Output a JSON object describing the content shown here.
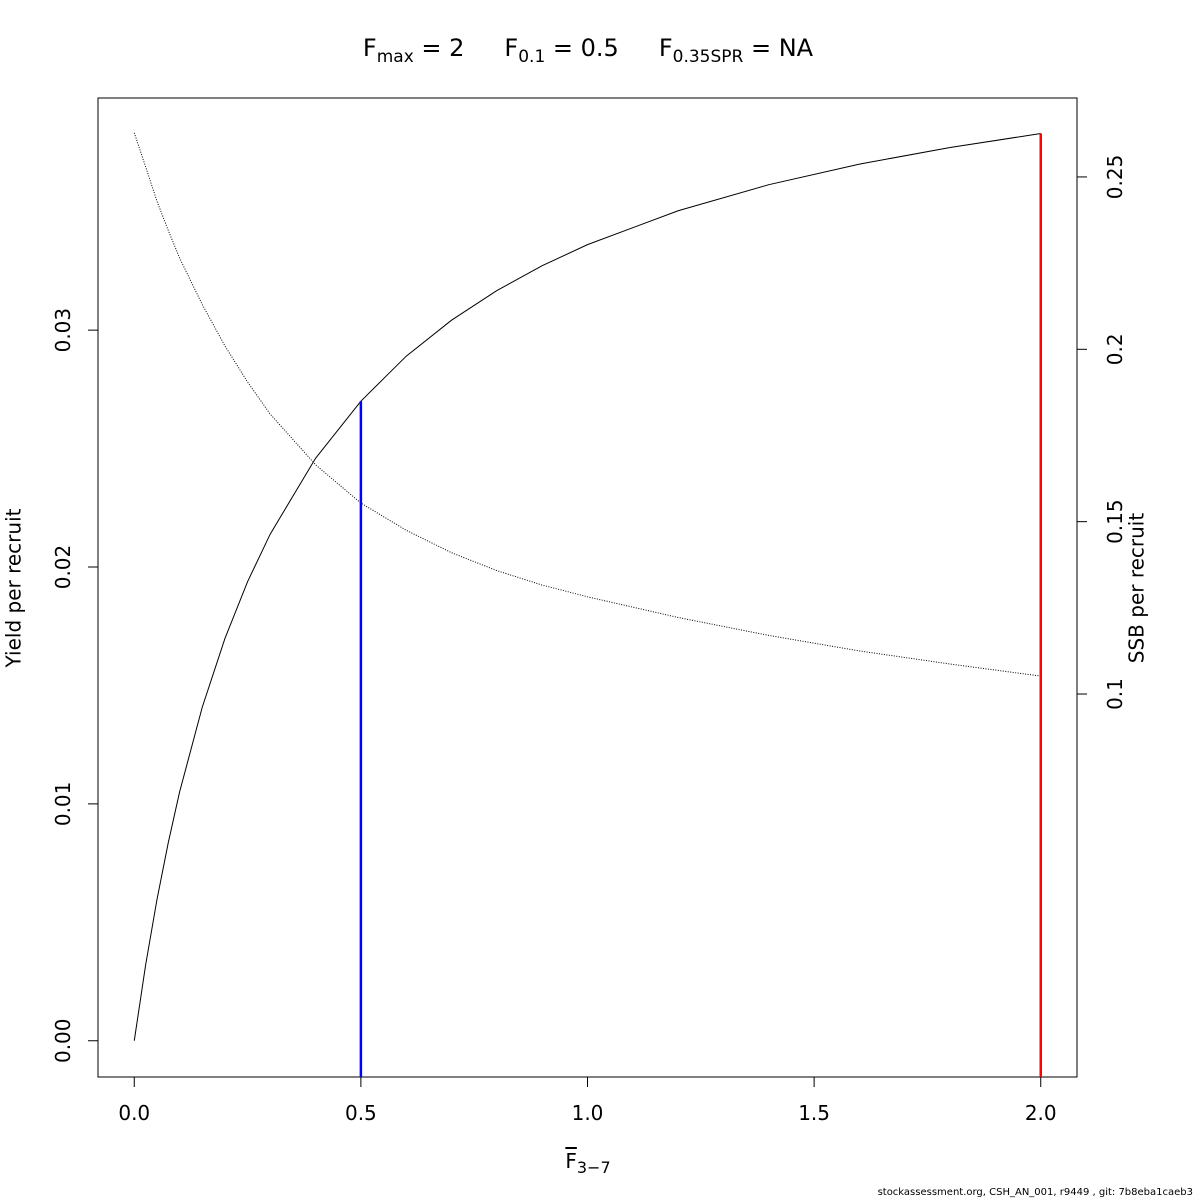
{
  "chart_data": {
    "type": "line",
    "title": [
      {
        "main": "F",
        "sub": "max",
        "rest": " = 2"
      },
      {
        "main": "F",
        "sub": "0.1",
        "rest": " = 0.5"
      },
      {
        "main": "F",
        "sub": "0.35SPR",
        "rest": " = NA"
      }
    ],
    "x_label": {
      "main": "F",
      "sub": "3−7"
    },
    "y_label": "Yield per recruit",
    "y2_label": "SSB per recruit",
    "footer": "stockassessment.org, CSH_AN_001, r9449 , git: 7b8eba1caeb3",
    "x": [
      0,
      0.025,
      0.05,
      0.075,
      0.1,
      0.15,
      0.2,
      0.25,
      0.3,
      0.4,
      0.5,
      0.6,
      0.7,
      0.8,
      0.9,
      1.0,
      1.2,
      1.4,
      1.6,
      1.8,
      2.0
    ],
    "series": [
      {
        "name": "Yield per recruit",
        "color": "#000000",
        "style": "solid",
        "values": [
          0,
          0.00319,
          0.00595,
          0.00836,
          0.0105,
          0.01408,
          0.01698,
          0.01938,
          0.02139,
          0.02459,
          0.027,
          0.0289,
          0.03042,
          0.03167,
          0.03272,
          0.03361,
          0.03504,
          0.03614,
          0.03701,
          0.03771,
          0.0383
        ]
      },
      {
        "name": "SSB per recruit",
        "color": "#000000",
        "style": "dotted",
        "axis": "y2",
        "values": [
          0.2628,
          0.253,
          0.243,
          0.2345,
          0.2265,
          0.213,
          0.201,
          0.1905,
          0.1812,
          0.1665,
          0.1554,
          0.1475,
          0.141,
          0.1358,
          0.1316,
          0.1282,
          0.1222,
          0.117,
          0.1125,
          0.1087,
          0.1052
        ]
      }
    ],
    "reference_lines": [
      {
        "x": 0.5,
        "y": 0.027,
        "color": "#0000ff"
      },
      {
        "x": 2,
        "y": 0.0383,
        "color": "#ff0000"
      }
    ],
    "xlim": [
      -0.08,
      2.08
    ],
    "xticks": [
      {
        "value": 0,
        "label": "0.0"
      },
      0.5,
      {
        "value": 1,
        "label": "1.0"
      },
      1.5,
      {
        "value": 2,
        "label": "2.0"
      }
    ],
    "ylim": [
      -0.00153,
      0.0398
    ],
    "yticks": [
      {
        "value": 0,
        "label": "0.00"
      },
      0.01,
      0.02,
      0.03
    ],
    "y2lim": [
      -0.0111,
      0.2729
    ],
    "y2ticks": [
      0.1,
      0.15,
      0.2,
      0.25
    ]
  }
}
